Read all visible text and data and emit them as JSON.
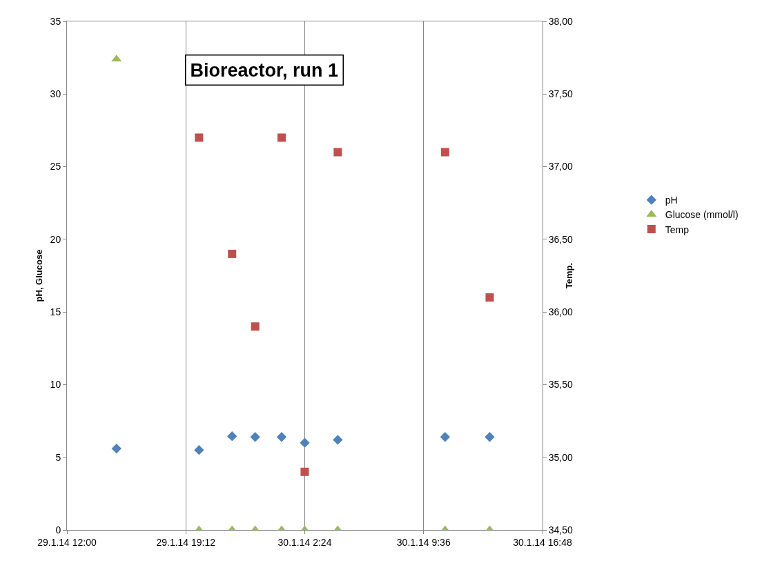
{
  "chart_data": {
    "type": "scatter",
    "title": "Bioreactor, run 1",
    "ylabel": "pH, Glucose",
    "y2label": "Temp.",
    "xlim": [
      "--01-29T12:00",
      "--01-30T16:48"
    ],
    "xticks": [
      {
        "value": "--01-29T12:00",
        "label": "29.1.14 12:00"
      },
      {
        "value": "--01-29T19:12",
        "label": "29.1.14 19:12"
      },
      {
        "value": "--01-30T02:24",
        "label": "30.1.14 2:24"
      },
      {
        "value": "--01-30T09:36",
        "label": "30.1.14 9:36"
      },
      {
        "value": "--01-30T16:48",
        "label": "30.1.14 16:48"
      }
    ],
    "ylim": [
      0,
      35
    ],
    "yticks": [
      0,
      5,
      10,
      15,
      20,
      25,
      30,
      35
    ],
    "y2lim": [
      34.5,
      38
    ],
    "y2ticks": [
      {
        "value": 34.5,
        "label": "34,50"
      },
      {
        "value": 35,
        "label": "35,00"
      },
      {
        "value": 35.5,
        "label": "35,50"
      },
      {
        "value": 36,
        "label": "36,00"
      },
      {
        "value": 36.5,
        "label": "36,50"
      },
      {
        "value": 37,
        "label": "37,00"
      },
      {
        "value": 37.5,
        "label": "37,50"
      },
      {
        "value": 38,
        "label": "38,00"
      }
    ],
    "grid": "x",
    "legend": "right",
    "series": [
      {
        "name": "pH",
        "color": "#4f81bd",
        "marker": "diamond",
        "x": [
          "--01-29T15:00",
          "--01-29T20:00",
          "--01-29T22:00",
          "--01-29T23:24",
          "--01-30T01:00",
          "--01-30T02:24",
          "--01-30T04:24",
          "--01-30T10:54",
          "--01-30T13:36"
        ],
        "values": [
          5.6,
          5.5,
          6.45,
          6.4,
          6.4,
          6.0,
          6.2,
          6.4,
          6.4
        ]
      },
      {
        "name": "Glucose (mmol/l)",
        "color": "#9bbb59",
        "marker": "triangle",
        "x": [
          "--01-29T15:00",
          "--01-29T20:00",
          "--01-29T22:00",
          "--01-29T23:24",
          "--01-30T01:00",
          "--01-30T02:24",
          "--01-30T04:24",
          "--01-30T10:54",
          "--01-30T13:36"
        ],
        "values": [
          32.4,
          0,
          0,
          0,
          0,
          0,
          0,
          0,
          0
        ]
      },
      {
        "name": "Temp",
        "color": "#c0504d",
        "marker": "square",
        "axis": "y2",
        "x": [
          "--01-29T20:00",
          "--01-29T22:00",
          "--01-29T23:24",
          "--01-30T01:00",
          "--01-30T02:24",
          "--01-30T04:24",
          "--01-30T10:54",
          "--01-30T13:36"
        ],
        "values": [
          37.2,
          36.4,
          35.9,
          37.2,
          34.9,
          37.1,
          37.1,
          36.1
        ]
      }
    ]
  }
}
